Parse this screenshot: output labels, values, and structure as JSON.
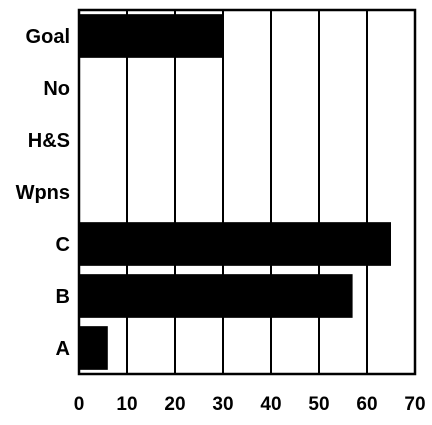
{
  "chart_data": {
    "type": "bar",
    "orientation": "horizontal",
    "categories": [
      "Goal",
      "No",
      "H&S",
      "Wpns",
      "C",
      "B",
      "A"
    ],
    "values": [
      30,
      0,
      0,
      0,
      65,
      57,
      6
    ],
    "xlim": [
      0,
      70
    ],
    "xticks": [
      0,
      10,
      20,
      30,
      40,
      50,
      60,
      70
    ],
    "grid": true,
    "bar_color": "#000000",
    "title": "",
    "xlabel": "",
    "ylabel": ""
  }
}
